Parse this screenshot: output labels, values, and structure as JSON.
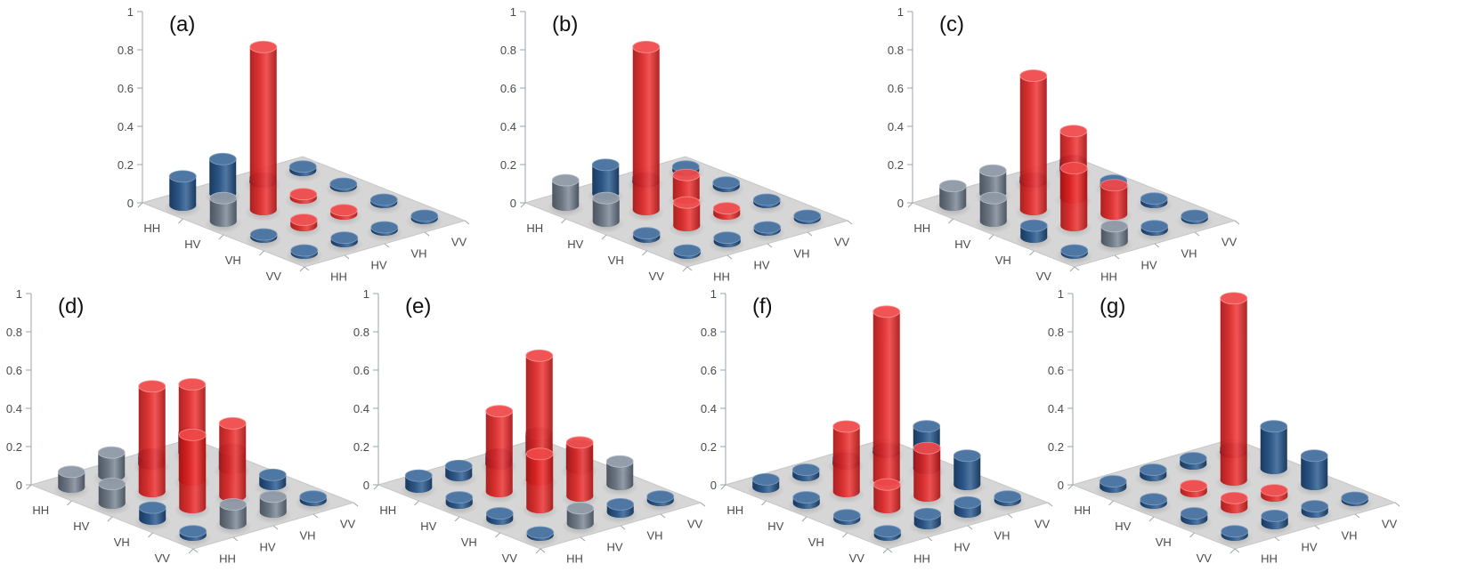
{
  "colors": {
    "red_top": "#f04848",
    "red_side": "#d92424",
    "red_dark": "#a81414",
    "blue_top": "#4f77a3",
    "blue_side": "#2b5585",
    "blue_dark": "#1a3a60",
    "grey_top": "#8e99a6",
    "grey_side": "#66717e",
    "grey_dark": "#454f5b",
    "floor": "#d6d6d6",
    "floor_edge": "#c6c6c6",
    "axis": "#9aa3ad",
    "text": "#4a4a4a"
  },
  "chart_data": [
    {
      "type": "bar3d",
      "panel_label": "(a)",
      "row_labels": [
        "HH",
        "HV",
        "VH",
        "VV"
      ],
      "col_labels": [
        "HH",
        "HV",
        "VH",
        "VV"
      ],
      "z_ticks": [
        "0",
        "0.2",
        "0.4",
        "0.6",
        "0.8",
        "1"
      ],
      "zlim": [
        0,
        1
      ],
      "values": [
        [
          0.15,
          0.18,
          0.02,
          0.02
        ],
        [
          0.12,
          0.85,
          0.02,
          0.01
        ],
        [
          0.01,
          0.03,
          0.02,
          0.01
        ],
        [
          0.01,
          0.02,
          0.01,
          0.01
        ]
      ],
      "highlight": [
        [
          0,
          0,
          0,
          0
        ],
        [
          0,
          1,
          1,
          0
        ],
        [
          0,
          1,
          1,
          0
        ],
        [
          0,
          0,
          0,
          0
        ]
      ]
    },
    {
      "type": "bar3d",
      "panel_label": "(b)",
      "row_labels": [
        "HH",
        "HV",
        "VH",
        "VV"
      ],
      "col_labels": [
        "HH",
        "HV",
        "VH",
        "VV"
      ],
      "z_ticks": [
        "0",
        "0.2",
        "0.4",
        "0.6",
        "0.8",
        "1"
      ],
      "zlim": [
        0,
        1
      ],
      "values": [
        [
          0.13,
          0.15,
          0.02,
          0.02
        ],
        [
          0.12,
          0.85,
          0.12,
          0.02
        ],
        [
          0.02,
          0.12,
          0.03,
          0.01
        ],
        [
          0.01,
          0.02,
          0.01,
          0.01
        ]
      ],
      "highlight": [
        [
          0,
          0,
          0,
          0
        ],
        [
          0,
          1,
          1,
          0
        ],
        [
          0,
          1,
          1,
          0
        ],
        [
          0,
          0,
          0,
          0
        ]
      ]
    },
    {
      "type": "bar3d",
      "panel_label": "(c)",
      "row_labels": [
        "HH",
        "HV",
        "VH",
        "VV"
      ],
      "col_labels": [
        "HH",
        "HV",
        "VH",
        "VV"
      ],
      "z_ticks": [
        "0",
        "0.2",
        "0.4",
        "0.6",
        "0.8",
        "1"
      ],
      "zlim": [
        0,
        1
      ],
      "values": [
        [
          0.1,
          0.12,
          0.02,
          0.05
        ],
        [
          0.12,
          0.7,
          0.35,
          0.03
        ],
        [
          0.06,
          0.3,
          0.15,
          0.02
        ],
        [
          0.01,
          0.08,
          0.02,
          0.01
        ]
      ],
      "highlight": [
        [
          0,
          0,
          0,
          0
        ],
        [
          0,
          1,
          1,
          0
        ],
        [
          0,
          1,
          1,
          0
        ],
        [
          0,
          0,
          0,
          0
        ]
      ]
    },
    {
      "type": "bar3d",
      "panel_label": "(d)",
      "row_labels": [
        "HH",
        "HV",
        "VH",
        "VV"
      ],
      "col_labels": [
        "HH",
        "HV",
        "VH",
        "VV"
      ],
      "z_ticks": [
        "0",
        "0.2",
        "0.4",
        "0.6",
        "0.8",
        "1"
      ],
      "zlim": [
        0,
        1
      ],
      "values": [
        [
          0.08,
          0.12,
          0.05,
          0.1
        ],
        [
          0.1,
          0.55,
          0.5,
          0.1
        ],
        [
          0.06,
          0.38,
          0.38,
          0.05
        ],
        [
          0.02,
          0.1,
          0.08,
          0.02
        ]
      ],
      "highlight": [
        [
          0,
          0,
          0,
          0
        ],
        [
          0,
          1,
          1,
          0
        ],
        [
          0,
          1,
          1,
          0
        ],
        [
          0,
          0,
          0,
          0
        ]
      ]
    },
    {
      "type": "bar3d",
      "panel_label": "(e)",
      "row_labels": [
        "HH",
        "HV",
        "VH",
        "VV"
      ],
      "col_labels": [
        "HH",
        "HV",
        "VH",
        "VV"
      ],
      "z_ticks": [
        "0",
        "0.2",
        "0.4",
        "0.6",
        "0.8",
        "1"
      ],
      "zlim": [
        0,
        1
      ],
      "values": [
        [
          0.06,
          0.05,
          0.05,
          0.1
        ],
        [
          0.03,
          0.42,
          0.65,
          0.12
        ],
        [
          0.03,
          0.28,
          0.28,
          0.12
        ],
        [
          0.01,
          0.08,
          0.04,
          0.02
        ]
      ],
      "highlight": [
        [
          0,
          0,
          0,
          0
        ],
        [
          0,
          1,
          1,
          0
        ],
        [
          0,
          1,
          1,
          0
        ],
        [
          0,
          0,
          0,
          0
        ]
      ]
    },
    {
      "type": "bar3d",
      "panel_label": "(f)",
      "row_labels": [
        "HH",
        "HV",
        "VH",
        "VV"
      ],
      "col_labels": [
        "HH",
        "HV",
        "VH",
        "VV"
      ],
      "z_ticks": [
        "0",
        "0.2",
        "0.4",
        "0.6",
        "0.8",
        "1"
      ],
      "zlim": [
        0,
        1
      ],
      "values": [
        [
          0.04,
          0.03,
          0.03,
          0.02
        ],
        [
          0.03,
          0.34,
          0.88,
          0.22
        ],
        [
          0.02,
          0.12,
          0.25,
          0.15
        ],
        [
          0.02,
          0.05,
          0.05,
          0.02
        ]
      ],
      "highlight": [
        [
          0,
          0,
          0,
          0
        ],
        [
          0,
          1,
          1,
          0
        ],
        [
          0,
          1,
          1,
          0
        ],
        [
          0,
          0,
          0,
          0
        ]
      ]
    },
    {
      "type": "bar3d",
      "panel_label": "(g)",
      "row_labels": [
        "HH",
        "HV",
        "VH",
        "VV"
      ],
      "col_labels": [
        "HH",
        "HV",
        "VH",
        "VV"
      ],
      "z_ticks": [
        "0",
        "0.2",
        "0.4",
        "0.6",
        "0.8",
        "1"
      ],
      "zlim": [
        0,
        1
      ],
      "values": [
        [
          0.03,
          0.03,
          0.03,
          0.02
        ],
        [
          0.02,
          0.03,
          0.95,
          0.22
        ],
        [
          0.03,
          0.05,
          0.03,
          0.15
        ],
        [
          0.02,
          0.04,
          0.03,
          0.01
        ]
      ],
      "highlight": [
        [
          0,
          0,
          0,
          0
        ],
        [
          0,
          1,
          1,
          0
        ],
        [
          0,
          1,
          1,
          0
        ],
        [
          0,
          0,
          0,
          0
        ]
      ]
    }
  ]
}
